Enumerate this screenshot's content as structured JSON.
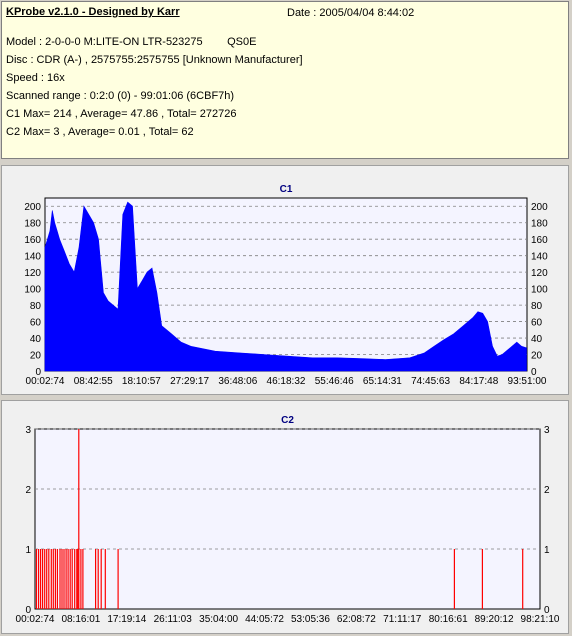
{
  "header": {
    "title": "KProbe v2.1.0 - Designed by Karr",
    "date": "Date : 2005/04/04 8:44:02",
    "lines": [
      "Model : 2-0-0-0 M:LITE-ON LTR-523275        QS0E",
      "Disc : CDR (A-) , 2575755:2575755 [Unknown Manufacturer]",
      "Speed : 16x",
      "Scanned range : 0:2:0 (0) - 99:01:06 (6CBF7h)",
      "C1 Max= 214 , Average= 47.86 , Total= 272726",
      "C2 Max= 3 , Average= 0.01 , Total= 62"
    ]
  },
  "colors": {
    "c1": "#0000ff",
    "c2": "#ff0000",
    "plot_bg": "#f4f4ff",
    "title": "#000080"
  },
  "chart_data": [
    {
      "type": "area",
      "title": "C1",
      "ylim": [
        0,
        210
      ],
      "yticks": [
        0,
        20,
        40,
        60,
        80,
        100,
        120,
        140,
        160,
        180,
        200
      ],
      "x_tick_labels": [
        "00:02:74",
        "08:42:55",
        "18:10:57",
        "27:29:17",
        "36:48:06",
        "46:18:32",
        "55:46:46",
        "65:14:31",
        "74:45:63",
        "84:17:48",
        "93:51:00"
      ],
      "grid": "dashed horizontal",
      "x_minutes": [
        0,
        1,
        1.5,
        2,
        2.5,
        3,
        4,
        5,
        6,
        7,
        8,
        9,
        10,
        11,
        12,
        13,
        14,
        15,
        16,
        17,
        18,
        19,
        20,
        21,
        22,
        23,
        24,
        26,
        28,
        30,
        35,
        40,
        45,
        50,
        55,
        60,
        65,
        70,
        75,
        78,
        80,
        82,
        84,
        86,
        88,
        89,
        90,
        91,
        92,
        93,
        94,
        95,
        96,
        97,
        98,
        99
      ],
      "values": [
        150,
        170,
        195,
        180,
        170,
        160,
        145,
        130,
        120,
        150,
        200,
        190,
        180,
        160,
        95,
        85,
        80,
        75,
        190,
        205,
        200,
        100,
        110,
        120,
        125,
        95,
        55,
        45,
        35,
        30,
        24,
        22,
        20,
        18,
        16,
        16,
        15,
        14,
        16,
        22,
        30,
        38,
        45,
        55,
        65,
        72,
        70,
        60,
        30,
        18,
        20,
        25,
        30,
        35,
        30,
        28
      ]
    },
    {
      "type": "bar",
      "title": "C2",
      "ylim": [
        0,
        3
      ],
      "yticks": [
        0,
        1,
        2,
        3
      ],
      "x_tick_labels": [
        "00:02:74",
        "08:16:01",
        "17:19:14",
        "26:11:03",
        "35:04:00",
        "44:05:72",
        "53:05:36",
        "62:08:72",
        "71:11:17",
        "80:16:61",
        "89:20:12",
        "98:21:10"
      ],
      "grid": "dashed horizontal",
      "x_minutes": [
        0.3,
        0.7,
        1.1,
        1.5,
        1.9,
        2.3,
        2.7,
        3.2,
        3.6,
        4.0,
        4.4,
        4.9,
        5.3,
        5.7,
        6.1,
        6.5,
        6.9,
        7.3,
        7.8,
        8.2,
        8.4,
        8.6,
        9.0,
        9.4,
        11.9,
        12.4,
        13.0,
        13.8,
        16.3,
        82.3,
        87.8,
        95.7
      ],
      "values": [
        1,
        1,
        1,
        1,
        1,
        1,
        1,
        1,
        1,
        1,
        1,
        1,
        1,
        1,
        1,
        1,
        1,
        1,
        1,
        1,
        1,
        3,
        1,
        1,
        1,
        1,
        1,
        1,
        1,
        1,
        1,
        1
      ]
    }
  ]
}
